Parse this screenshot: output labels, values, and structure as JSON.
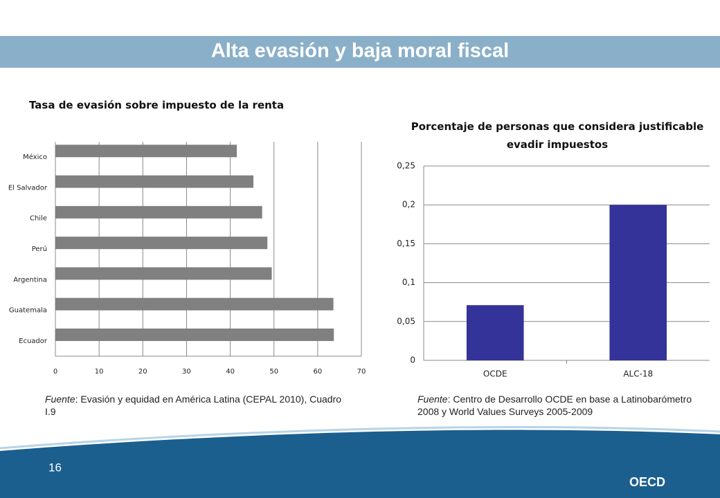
{
  "header": {
    "title": "Alta evasión y baja moral fiscal"
  },
  "chart_data": [
    {
      "type": "barh",
      "title": "Tasa de evasión sobre impuesto de la renta",
      "categories": [
        "México",
        "El Salvador",
        "Chile",
        "Perú",
        "Argentina",
        "Guatemala",
        "Ecuador"
      ],
      "values": [
        41.5,
        45.3,
        47.3,
        48.5,
        49.5,
        63.6,
        63.7
      ],
      "color": "#808080",
      "xlim": [
        0,
        70
      ],
      "xticks": [
        0,
        10,
        20,
        30,
        40,
        50,
        60,
        70
      ],
      "grid": true
    },
    {
      "type": "bar",
      "title": "Porcentaje de personas que considera justificable evadir impuestos",
      "categories": [
        "OCDE",
        "ALC-18"
      ],
      "values": [
        0.071,
        0.2
      ],
      "color": "#333399",
      "ylim": [
        0,
        0.25
      ],
      "yticks": [
        0,
        {
          "value": 0.05,
          "label": "0,05"
        },
        {
          "value": 0.1,
          "label": "0,1"
        },
        {
          "value": 0.15,
          "label": "0,15"
        },
        {
          "value": 0.2,
          "label": "0,2"
        },
        {
          "value": 0.25,
          "label": "0,25"
        }
      ],
      "grid": true
    }
  ],
  "sources": [
    {
      "label": "Fuente",
      "text": ": Evasión y equidad en América Latina (CEPAL 2010), Cuadro I.9"
    },
    {
      "label": "Fuente",
      "text": ": Centro de Desarrollo OCDE en base a Latinobarómetro 2008 y World Values Surveys 2005-2009"
    }
  ],
  "footer": {
    "page": "16",
    "logo": "OECD"
  }
}
